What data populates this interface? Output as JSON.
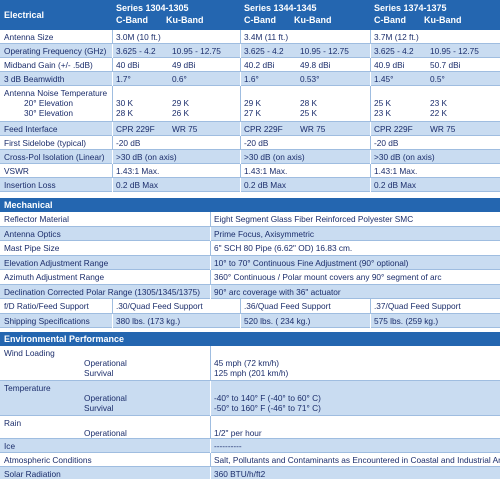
{
  "electrical": {
    "title": "Electrical",
    "series": [
      {
        "name": "Series 1304-1305",
        "bands": [
          "C-Band",
          "Ku-Band"
        ]
      },
      {
        "name": "Series 1344-1345",
        "bands": [
          "C-Band",
          "Ku-Band"
        ]
      },
      {
        "name": "Series 1374-1375",
        "bands": [
          "C-Band",
          "Ku-Band"
        ]
      }
    ],
    "rows": [
      {
        "label": "Antenna Size",
        "values": [
          [
            "3.0M (10 ft.)"
          ],
          [
            "3.4M (11 ft.)"
          ],
          [
            "3.7M (12 ft.)"
          ]
        ]
      },
      {
        "label": "Operating Frequency (GHz)",
        "values": [
          [
            "3.625 - 4.2",
            "10.95 - 12.75"
          ],
          [
            "3.625 - 4.2",
            "10.95 - 12.75"
          ],
          [
            "3.625 - 4.2",
            "10.95 - 12.75"
          ]
        ]
      },
      {
        "label": "Midband Gain (+/- .5dB)",
        "values": [
          [
            "40 dBi",
            "49 dBi"
          ],
          [
            "40.2 dBi",
            "49.8 dBi"
          ],
          [
            "40.9 dBi",
            "50.7 dBi"
          ]
        ]
      },
      {
        "label": "3 dB Beamwidth",
        "values": [
          [
            "1.7°",
            "0.6°"
          ],
          [
            "1.6°",
            "0.53°"
          ],
          [
            "1.45°",
            "0.5°"
          ]
        ]
      },
      {
        "label": "Antenna Noise Temperature",
        "sublabels": [
          "20° Elevation",
          "30° Elevation"
        ],
        "values": [
          [
            [
              "30 K",
              "29 K"
            ],
            [
              "28 K",
              "26 K"
            ]
          ],
          [
            [
              "29 K",
              "28 K"
            ],
            [
              "27 K",
              "25 K"
            ]
          ],
          [
            [
              "25 K",
              "23 K"
            ],
            [
              "23 K",
              "22 K"
            ]
          ]
        ]
      },
      {
        "label": "Feed Interface",
        "values": [
          [
            "CPR 229F",
            "WR 75"
          ],
          [
            "CPR 229F",
            "WR 75"
          ],
          [
            "CPR 229F",
            "WR 75"
          ]
        ]
      },
      {
        "label": "First Sidelobe (typical)",
        "values": [
          [
            "-20 dB"
          ],
          [
            "-20 dB"
          ],
          [
            "-20 dB"
          ]
        ]
      },
      {
        "label": "Cross-Pol Isolation (Linear)",
        "values": [
          [
            ">30 dB (on axis)"
          ],
          [
            ">30 dB (on axis)"
          ],
          [
            ">30 dB (on axis)"
          ]
        ]
      },
      {
        "label": "VSWR",
        "values": [
          [
            "1.43:1 Max."
          ],
          [
            "1.43:1 Max."
          ],
          [
            "1.43:1 Max."
          ]
        ]
      },
      {
        "label": "Insertion Loss",
        "values": [
          [
            "0.2 dB Max"
          ],
          [
            "0.2 dB Max"
          ],
          [
            "0.2 dB Max"
          ]
        ]
      }
    ]
  },
  "mechanical": {
    "title": "Mechanical",
    "rows": [
      {
        "label": "Reflector Material",
        "value": "Eight Segment Glass Fiber Reinforced Polyester SMC"
      },
      {
        "label": "Antenna Optics",
        "value": "Prime Focus, Axisymmetric"
      },
      {
        "label": "Mast Pipe Size",
        "value": "6\" SCH 80 Pipe (6.62\" OD) 16.83 cm."
      },
      {
        "label": "Elevation Adjustment Range",
        "value": "10° to 70° Continuous Fine Adjustment (90° optional)"
      },
      {
        "label": "Azimuth Adjustment Range",
        "value": "360° Continuous / Polar mount covers any 90° segment of arc"
      },
      {
        "label": "Declination Corrected Polar Range (1305/1345/1375)",
        "value": "90° arc coverage with 36\" actuator"
      },
      {
        "label": "f/D Ratio/Feed Support",
        "values": [
          ".30/Quad Feed Support",
          ".36/Quad Feed Support",
          ".37/Quad Feed Support"
        ]
      },
      {
        "label": "Shipping Specifications",
        "values": [
          "380 lbs. (173 kg.)",
          "520 lbs. ( 234 kg.)",
          "575 lbs. (259 kg.)"
        ]
      }
    ]
  },
  "environmental": {
    "title": "Environmental Performance",
    "rows": [
      {
        "label": "Wind Loading",
        "lines": [
          {
            "label": "Operational",
            "value": "45 mph (72 km/h)"
          },
          {
            "label": "Survival",
            "value": "125 mph (201 km/h)"
          }
        ]
      },
      {
        "label": "Temperature",
        "lines": [
          {
            "label": "Operational",
            "value": "-40° to 140° F (-40° to 60° C)"
          },
          {
            "label": "Survival",
            "value": "-50° to 160° F (-46° to 71° C)"
          }
        ]
      },
      {
        "label": "Rain",
        "lines": [
          {
            "label": "Operational",
            "value": "1/2\" per hour"
          }
        ]
      },
      {
        "label": "Ice",
        "value": "----------"
      },
      {
        "label": "Atmospheric Conditions",
        "value": "Salt, Pollutants and Contaminants as Encountered in Coastal and Industrial Areas"
      },
      {
        "label": "Solar Radiation",
        "value": "360 BTU/h/ft2"
      }
    ]
  }
}
